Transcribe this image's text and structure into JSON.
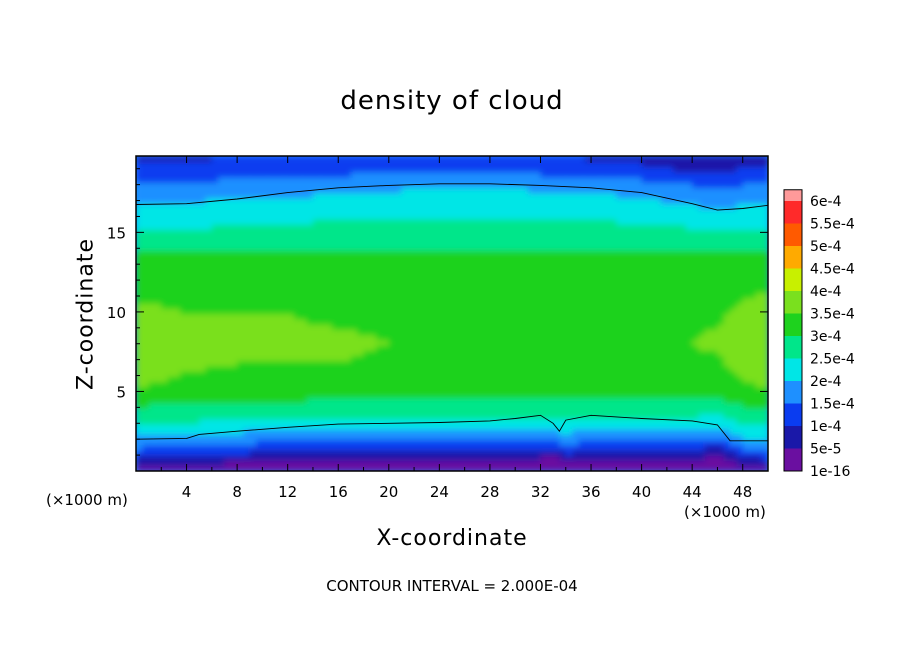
{
  "chart_data": {
    "type": "heatmap",
    "title": "density of cloud",
    "xlabel": "X-coordinate",
    "ylabel": "Z-coordinate",
    "x_unit_label": "(×1000 m)",
    "footnote": "CONTOUR INTERVAL = 2.000E-04",
    "xlim": [
      0,
      50
    ],
    "ylim": [
      0,
      19.8
    ],
    "x_ticks": [
      4,
      8,
      12,
      16,
      20,
      24,
      28,
      32,
      36,
      40,
      44,
      48
    ],
    "x_tick_labels": [
      "4",
      "8",
      "12",
      "16",
      "20",
      "24",
      "28",
      "32",
      "36",
      "40",
      "44",
      "48"
    ],
    "y_ticks": [
      5,
      10,
      15
    ],
    "y_tick_labels": [
      "5",
      "10",
      "15"
    ],
    "colorbar": {
      "levels": [
        1e-16,
        5e-05,
        0.0001,
        0.00015,
        0.0002,
        0.00025,
        0.0003,
        0.00035,
        0.0004,
        0.00045,
        0.0005,
        0.00055,
        0.0006
      ],
      "labels": [
        "1e-16",
        "5e-5",
        "1e-4",
        "1.5e-4",
        "2e-4",
        "2.5e-4",
        "3e-4",
        "3.5e-4",
        "4e-4",
        "4.5e-4",
        "5e-4",
        "5.5e-4",
        "6e-4"
      ],
      "colors": [
        "#6a0fa0",
        "#1a18a8",
        "#0a3cf0",
        "#1e90ff",
        "#00e6e6",
        "#00e68a",
        "#1ed21e",
        "#7ae01e",
        "#c8f000",
        "#ffaa00",
        "#ff5a00",
        "#ff2a2a",
        "#ff9a9a"
      ]
    },
    "profile_columns": {
      "x": [
        0,
        4,
        8,
        12,
        16,
        20,
        24,
        28,
        32,
        33,
        34,
        36,
        40,
        44,
        46,
        48,
        50
      ],
      "z": [
        0,
        0.4,
        1.0,
        1.7,
        2.6,
        3.6,
        4.6,
        5.6,
        6.8,
        8.0,
        10.0,
        12.0,
        13.8,
        15.0,
        16.2,
        17.2,
        18.0,
        18.8,
        19.8
      ],
      "values_e4": [
        [
          0.1,
          0.6,
          1.1,
          1.7,
          2.2,
          2.8,
          3.2,
          3.6,
          3.8,
          3.9,
          3.6,
          3.3,
          3.0,
          2.6,
          2.2,
          1.85,
          1.6,
          1.2,
          0.9
        ],
        [
          0.1,
          0.5,
          1.0,
          1.6,
          2.2,
          2.8,
          3.1,
          3.4,
          3.6,
          3.7,
          3.5,
          3.3,
          3.0,
          2.6,
          2.2,
          1.9,
          1.6,
          1.2,
          0.9
        ],
        [
          0.05,
          0.4,
          0.9,
          1.5,
          2.1,
          2.7,
          3.1,
          3.3,
          3.5,
          3.6,
          3.5,
          3.3,
          3.0,
          2.6,
          2.3,
          2.0,
          1.7,
          1.3,
          1.0
        ],
        [
          0.05,
          0.4,
          0.8,
          1.3,
          2.0,
          2.6,
          3.1,
          3.3,
          3.5,
          3.6,
          3.5,
          3.3,
          3.0,
          2.7,
          2.3,
          2.0,
          1.7,
          1.3,
          1.0
        ],
        [
          0.05,
          0.4,
          0.8,
          1.3,
          2.0,
          2.6,
          3.0,
          3.3,
          3.5,
          3.6,
          3.4,
          3.3,
          3.0,
          2.7,
          2.4,
          2.1,
          1.8,
          1.4,
          1.1
        ],
        [
          0.05,
          0.4,
          0.8,
          1.3,
          2.0,
          2.6,
          3.0,
          3.2,
          3.4,
          3.5,
          3.4,
          3.3,
          3.0,
          2.7,
          2.4,
          2.1,
          1.9,
          1.5,
          1.1
        ],
        [
          0.05,
          0.3,
          0.7,
          1.3,
          2.0,
          2.6,
          3.0,
          3.2,
          3.4,
          3.5,
          3.4,
          3.3,
          3.0,
          2.7,
          2.4,
          2.2,
          1.95,
          1.5,
          1.1
        ],
        [
          0.05,
          0.3,
          0.6,
          1.2,
          2.0,
          2.6,
          3.0,
          3.2,
          3.4,
          3.5,
          3.4,
          3.3,
          3.0,
          2.7,
          2.4,
          2.2,
          1.95,
          1.5,
          1.1
        ],
        [
          0.05,
          0.3,
          0.6,
          1.2,
          2.0,
          2.6,
          3.0,
          3.2,
          3.4,
          3.5,
          3.4,
          3.3,
          3.0,
          2.7,
          2.4,
          2.1,
          1.9,
          1.4,
          1.0
        ],
        [
          0.05,
          0.2,
          0.5,
          1.3,
          2.1,
          2.6,
          3.0,
          3.2,
          3.4,
          3.5,
          3.4,
          3.3,
          3.0,
          2.7,
          2.4,
          2.1,
          1.9,
          1.4,
          1.0
        ],
        [
          0.05,
          0.4,
          0.9,
          1.5,
          2.1,
          2.6,
          3.0,
          3.2,
          3.4,
          3.5,
          3.4,
          3.3,
          3.0,
          2.7,
          2.4,
          2.1,
          1.85,
          1.4,
          1.0
        ],
        [
          0.05,
          0.3,
          0.7,
          1.3,
          2.0,
          2.6,
          3.0,
          3.2,
          3.4,
          3.5,
          3.4,
          3.3,
          3.0,
          2.7,
          2.4,
          2.1,
          1.8,
          1.3,
          0.9
        ],
        [
          0.05,
          0.3,
          0.7,
          1.3,
          2.0,
          2.6,
          3.0,
          3.2,
          3.4,
          3.5,
          3.4,
          3.3,
          3.0,
          2.7,
          2.3,
          2.0,
          1.7,
          1.2,
          0.8
        ],
        [
          0.05,
          0.3,
          0.7,
          1.3,
          2.0,
          2.6,
          3.0,
          3.2,
          3.4,
          3.5,
          3.4,
          3.3,
          3.0,
          2.6,
          2.2,
          1.8,
          1.5,
          1.0,
          0.6
        ],
        [
          0.05,
          0.2,
          0.5,
          1.1,
          1.9,
          2.5,
          3.0,
          3.2,
          3.4,
          3.6,
          3.4,
          3.3,
          3.0,
          2.6,
          2.1,
          1.7,
          1.4,
          0.9,
          0.6
        ],
        [
          0.05,
          0.5,
          1.0,
          1.7,
          2.3,
          2.8,
          3.2,
          3.5,
          3.7,
          3.9,
          3.6,
          3.3,
          3.0,
          2.6,
          2.2,
          1.8,
          1.5,
          1.1,
          0.8
        ],
        [
          0.1,
          0.6,
          1.2,
          1.8,
          2.4,
          2.9,
          3.3,
          3.6,
          3.8,
          4.0,
          3.7,
          3.4,
          3.0,
          2.6,
          2.2,
          1.8,
          1.5,
          1.1,
          0.8
        ]
      ]
    },
    "contour_2e-4": {
      "lower": {
        "x": [
          0,
          4,
          5,
          8,
          12,
          16,
          20,
          24,
          28,
          30,
          32,
          33,
          33.5,
          34,
          36,
          40,
          44,
          46,
          47,
          50
        ],
        "z": [
          2.0,
          2.05,
          2.3,
          2.5,
          2.75,
          2.95,
          3.0,
          3.05,
          3.15,
          3.3,
          3.5,
          3.0,
          2.5,
          3.2,
          3.5,
          3.3,
          3.15,
          2.9,
          1.9,
          1.9
        ]
      },
      "upper": {
        "x": [
          0,
          4,
          8,
          12,
          16,
          20,
          24,
          28,
          32,
          36,
          40,
          44,
          46,
          48,
          50
        ],
        "z": [
          16.75,
          16.8,
          17.1,
          17.5,
          17.8,
          17.95,
          18.05,
          18.05,
          17.95,
          17.8,
          17.5,
          16.8,
          16.4,
          16.5,
          16.7
        ]
      }
    }
  }
}
